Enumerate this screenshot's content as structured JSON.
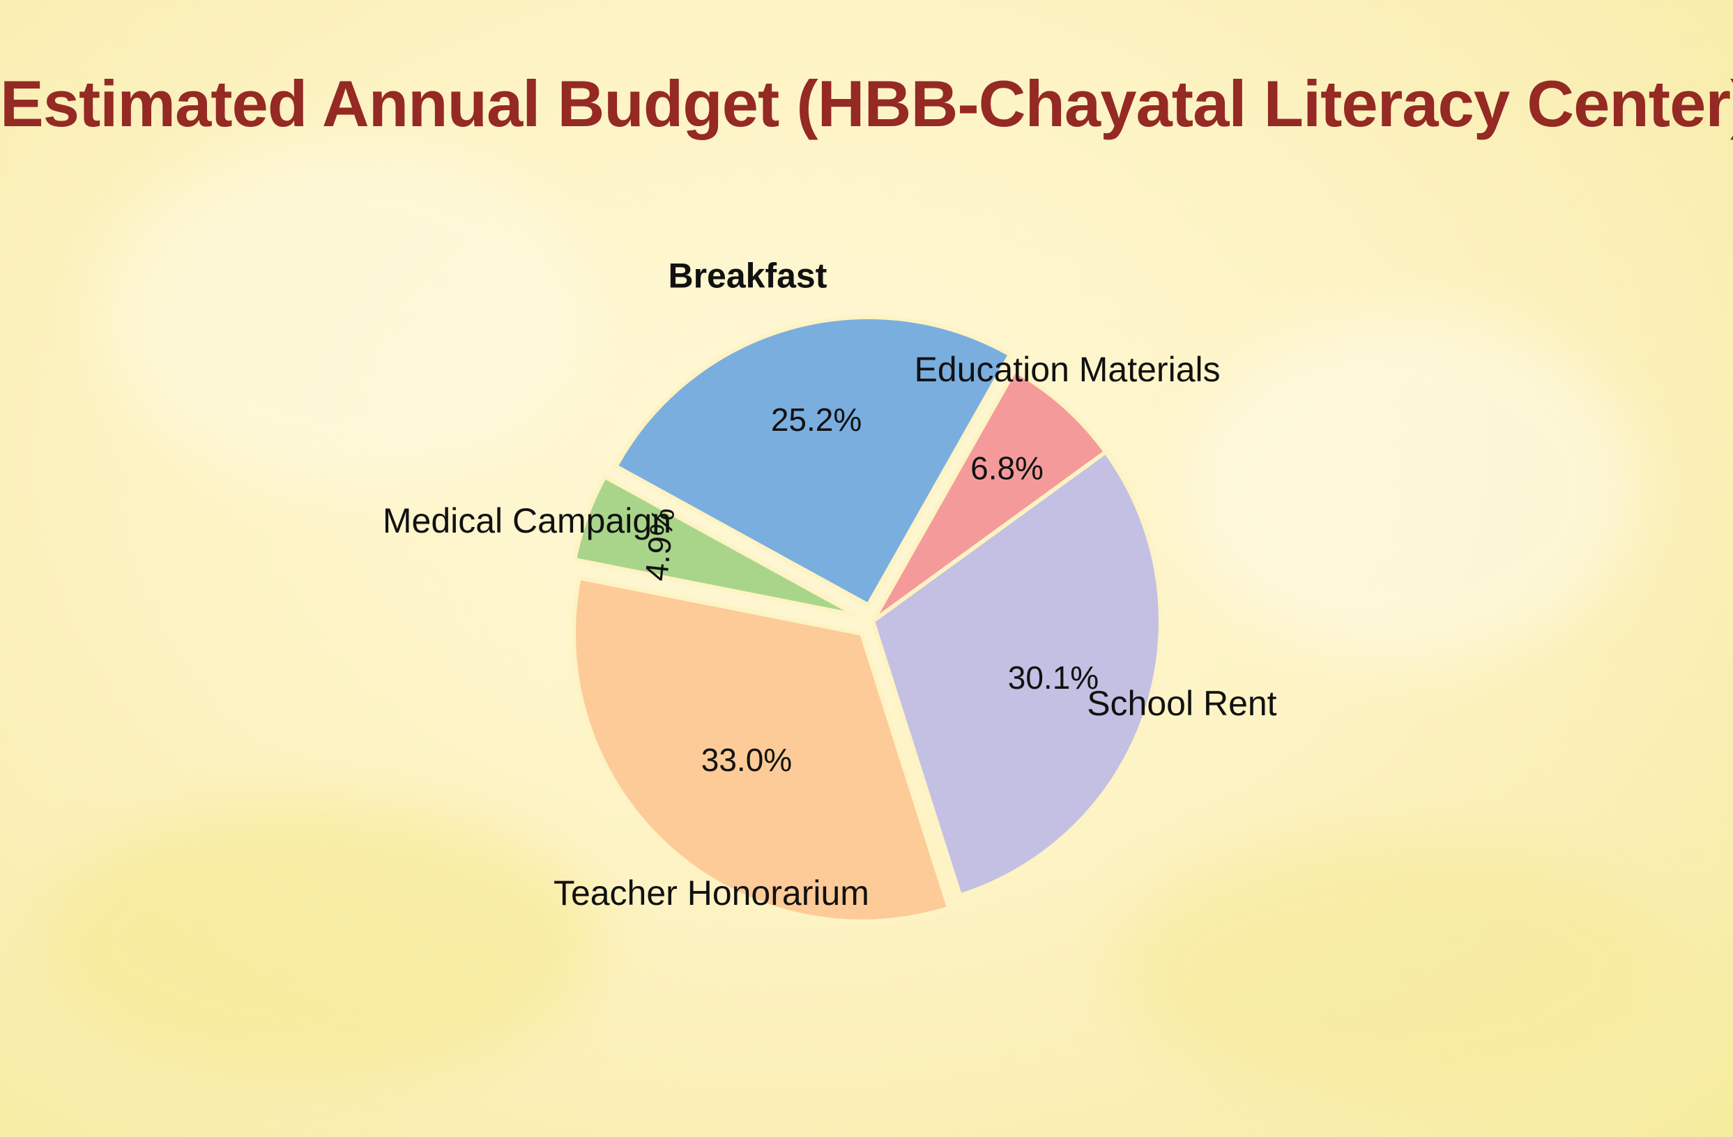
{
  "chart_data": {
    "type": "pie",
    "title": "Estimated Annual Budget (HBB-Chayatal Literacy Center)",
    "slices": [
      {
        "label": "School Rent",
        "value": 30.1,
        "display": "30.1%",
        "color": "#c3c0e3"
      },
      {
        "label": "Teacher Honorarium",
        "value": 33.0,
        "display": "33.0%",
        "color": "#fdcb98"
      },
      {
        "label": "Medical Campaign",
        "value": 4.9,
        "display": "4.9%",
        "color": "#a8d58a"
      },
      {
        "label": "Breakfast",
        "value": 25.2,
        "display": "25.2%",
        "color": "#7aaedf"
      },
      {
        "label": "Education Materials",
        "value": 6.8,
        "display": "6.8%",
        "color": "#f59a9a"
      }
    ],
    "exploded": [
      "Teacher Honorarium",
      "Medical Campaign",
      "Breakfast"
    ],
    "title_color": "#952923",
    "background_color": "#fdf3c4"
  }
}
